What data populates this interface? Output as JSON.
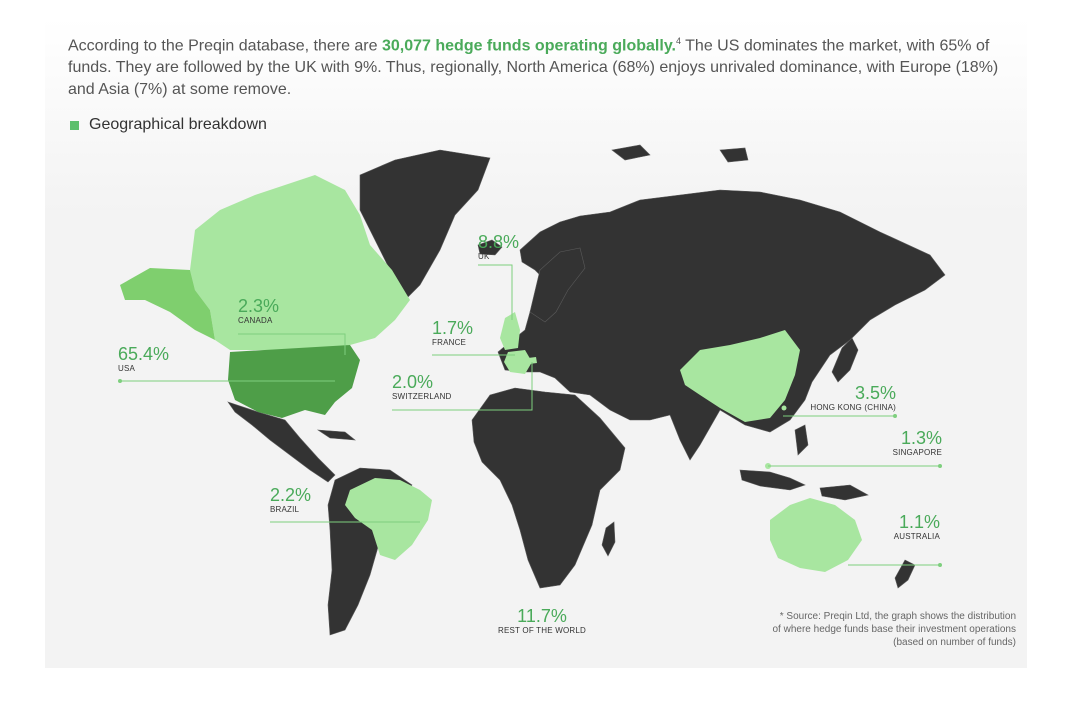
{
  "intro": {
    "part1": "According to the Preqin database, there are ",
    "highlight": "30,077 hedge funds operating globally.",
    "sup": "4",
    "part2": " The US dominates the market, with 65% of funds. They are followed by the UK with 9%. Thus, regionally, North America (68%) enjoys unrivaled dominance, with Europe (18%) and Asia (7%) at some remove."
  },
  "legend": {
    "label": "Geographical breakdown",
    "color": "#5cbf6c"
  },
  "colors": {
    "highlight": "#4aaa5a",
    "usa": "#4e9e48",
    "alaska": "#7fcf6e",
    "light": "#a8e6a0",
    "land": "#333333",
    "borders": "#5a5a5a",
    "leader": "#7ecf7e"
  },
  "regions": [
    {
      "name": "USA",
      "value": "65.4%"
    },
    {
      "name": "CANADA",
      "value": "2.3%"
    },
    {
      "name": "UK",
      "value": "8.8%"
    },
    {
      "name": "FRANCE",
      "value": "1.7%"
    },
    {
      "name": "SWITZERLAND",
      "value": "2.0%"
    },
    {
      "name": "HONG KONG (CHINA)",
      "value": "3.5%"
    },
    {
      "name": "SINGAPORE",
      "value": "1.3%"
    },
    {
      "name": "BRAZIL",
      "value": "2.2%"
    },
    {
      "name": "AUSTRALIA",
      "value": "1.1%"
    },
    {
      "name": "REST OF THE WORLD",
      "value": "11.7%"
    }
  ],
  "source": {
    "line1": "* Source: Preqin Ltd, the graph shows the distribution",
    "line2": "of where hedge funds base their investment operations",
    "line3": "(based on number of funds)"
  }
}
